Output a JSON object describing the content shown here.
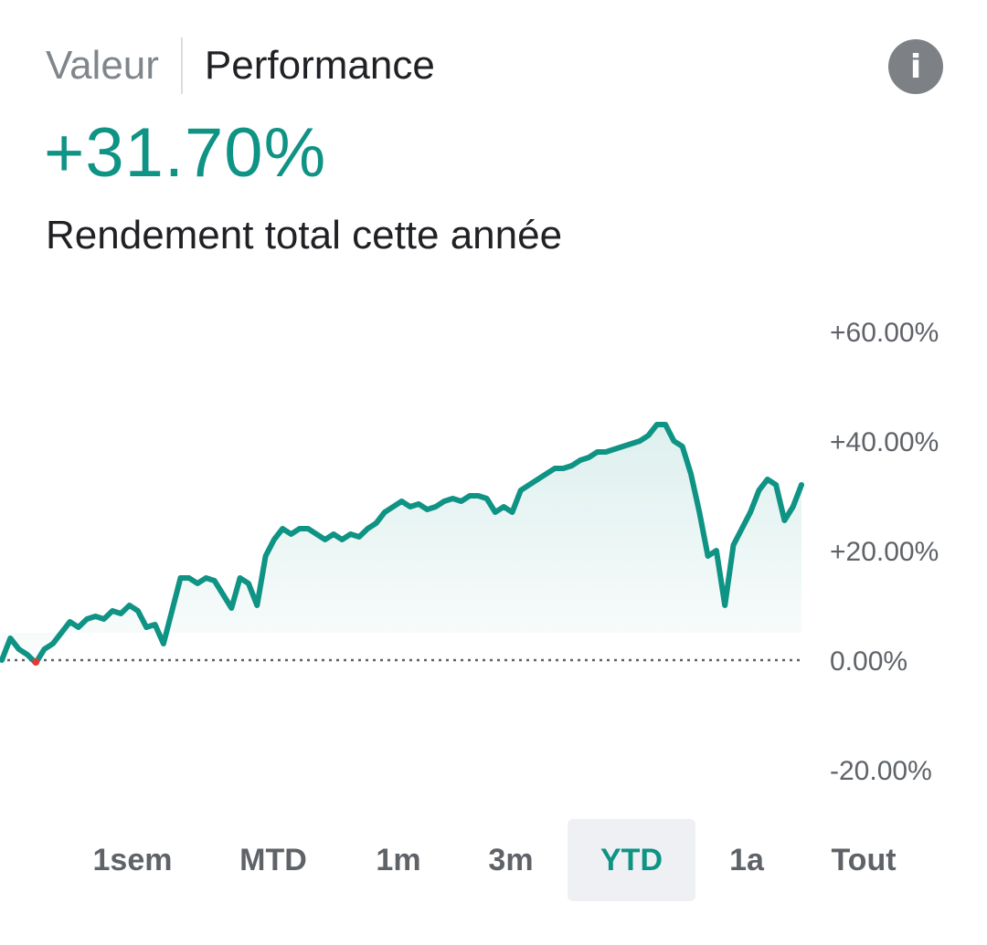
{
  "tabs": {
    "value_label": "Valeur",
    "performance_label": "Performance"
  },
  "info_icon": "info-icon",
  "headline": {
    "value": "+31.70%",
    "caption": "Rendement total cette année"
  },
  "colors": {
    "accent": "#0e9384",
    "fill": "#e8f5f2",
    "baseline": "#5f6368",
    "low_point": "#e53935"
  },
  "ranges": [
    "1sem",
    "MTD",
    "1m",
    "3m",
    "YTD",
    "1a",
    "Tout"
  ],
  "selected_range": "YTD",
  "chart_data": {
    "type": "line",
    "title": "",
    "xlabel": "",
    "ylabel": "",
    "ylim": [
      -20,
      60
    ],
    "yticks": [
      "+60.00%",
      "+40.00%",
      "+20.00%",
      "0.00%",
      "-20.00%"
    ],
    "baseline": 0,
    "grid": false,
    "series": [
      {
        "values": [
          0,
          4,
          2,
          1,
          -0.5,
          2,
          3,
          5,
          7,
          6,
          7.5,
          8,
          7.5,
          9,
          8.5,
          10,
          9,
          6,
          6.5,
          3,
          9,
          15,
          15,
          14,
          15,
          14.5,
          12,
          9.5,
          15,
          14,
          10,
          19,
          22,
          24,
          23,
          24,
          24,
          23,
          22,
          23,
          22,
          23,
          22.5,
          24,
          25,
          27,
          28,
          29,
          28,
          28.5,
          27.5,
          28,
          29,
          29.5,
          29,
          30,
          30,
          29.5,
          27,
          28,
          27,
          31,
          32,
          33,
          34,
          35,
          35,
          35.5,
          36.5,
          37,
          38,
          38,
          38.5,
          39,
          39.5,
          40,
          41,
          43,
          43,
          40,
          39,
          34,
          27,
          19,
          20,
          10,
          21,
          24,
          27,
          31,
          33,
          32,
          25.5,
          28,
          32
        ]
      }
    ]
  }
}
